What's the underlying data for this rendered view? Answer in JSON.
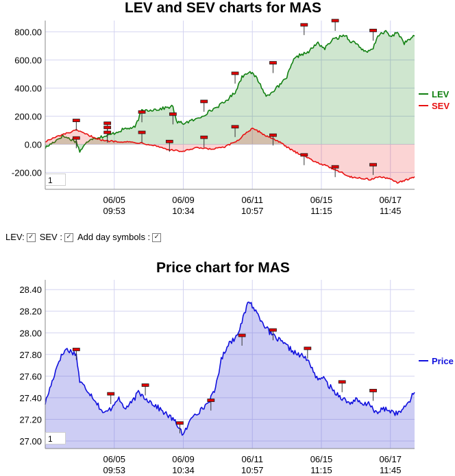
{
  "chart_data": [
    {
      "type": "area",
      "title": "LEV and SEV charts for MAS",
      "ylim": [
        -320,
        880
      ],
      "yticks": [
        "800.00",
        "600.00",
        "400.00",
        "200.00",
        "0.00",
        "-200.00"
      ],
      "ytick_values": [
        800,
        600,
        400,
        200,
        0,
        -200
      ],
      "xticks": [
        {
          "date": "06/05",
          "time": "09:53",
          "index": 20
        },
        {
          "date": "06/09",
          "time": "10:34",
          "index": 40
        },
        {
          "date": "06/11",
          "time": "10:57",
          "index": 60
        },
        {
          "date": "06/15",
          "time": "11:15",
          "index": 80
        },
        {
          "date": "06/17",
          "time": "11:45",
          "index": 100
        }
      ],
      "x_count": 107,
      "legend": {
        "position": "right"
      },
      "zoom_value": "1",
      "series": [
        {
          "name": "LEV",
          "color": "#118011",
          "fill": "rgba(17,128,17,0.20)",
          "points": [
            [
              0,
              -25
            ],
            [
              5,
              60
            ],
            [
              9,
              20
            ],
            [
              10,
              -50
            ],
            [
              13,
              40
            ],
            [
              18,
              60
            ],
            [
              20,
              80
            ],
            [
              23,
              110
            ],
            [
              26,
              120
            ],
            [
              28,
              240
            ],
            [
              33,
              250
            ],
            [
              37,
              270
            ],
            [
              38,
              160
            ],
            [
              40,
              150
            ],
            [
              44,
              180
            ],
            [
              48,
              240
            ],
            [
              52,
              300
            ],
            [
              55,
              370
            ],
            [
              57,
              480
            ],
            [
              59,
              520
            ],
            [
              61,
              480
            ],
            [
              62,
              440
            ],
            [
              64,
              340
            ],
            [
              66,
              380
            ],
            [
              68,
              420
            ],
            [
              70,
              480
            ],
            [
              72,
              600
            ],
            [
              74,
              640
            ],
            [
              76,
              650
            ],
            [
              78,
              700
            ],
            [
              79,
              720
            ],
            [
              81,
              680
            ],
            [
              83,
              740
            ],
            [
              85,
              760
            ],
            [
              87,
              780
            ],
            [
              88,
              740
            ],
            [
              90,
              720
            ],
            [
              93,
              650
            ],
            [
              95,
              680
            ],
            [
              96,
              750
            ],
            [
              97,
              790
            ],
            [
              99,
              800
            ],
            [
              100,
              760
            ],
            [
              102,
              800
            ],
            [
              104,
              720
            ],
            [
              107,
              770
            ]
          ],
          "symbols": [
            [
              9,
              165
            ],
            [
              18,
              145
            ],
            [
              18,
              115
            ],
            [
              28,
              225
            ],
            [
              37,
              210
            ],
            [
              46,
              300
            ],
            [
              55,
              500
            ],
            [
              66,
              575
            ],
            [
              75,
              845
            ],
            [
              84,
              875
            ],
            [
              95,
              805
            ]
          ]
        },
        {
          "name": "SEV",
          "color": "#e81010",
          "fill": "rgba(232,16,16,0.18)",
          "points": [
            [
              0,
              20
            ],
            [
              4,
              60
            ],
            [
              9,
              100
            ],
            [
              13,
              60
            ],
            [
              17,
              25
            ],
            [
              22,
              20
            ],
            [
              28,
              10
            ],
            [
              32,
              -10
            ],
            [
              36,
              -40
            ],
            [
              40,
              -50
            ],
            [
              44,
              -25
            ],
            [
              48,
              -35
            ],
            [
              52,
              -20
            ],
            [
              56,
              30
            ],
            [
              58,
              80
            ],
            [
              60,
              110
            ],
            [
              62,
              90
            ],
            [
              64,
              60
            ],
            [
              67,
              30
            ],
            [
              70,
              -20
            ],
            [
              72,
              -50
            ],
            [
              75,
              -80
            ],
            [
              77,
              -110
            ],
            [
              80,
              -140
            ],
            [
              83,
              -170
            ],
            [
              86,
              -200
            ],
            [
              88,
              -230
            ],
            [
              91,
              -240
            ],
            [
              94,
              -250
            ],
            [
              97,
              -230
            ],
            [
              100,
              -250
            ],
            [
              102,
              -270
            ],
            [
              104,
              -260
            ],
            [
              107,
              -230
            ]
          ],
          "symbols": [
            [
              9,
              40
            ],
            [
              18,
              80
            ],
            [
              28,
              80
            ],
            [
              36,
              15
            ],
            [
              46,
              45
            ],
            [
              55,
              120
            ],
            [
              66,
              60
            ],
            [
              75,
              -80
            ],
            [
              84,
              -165
            ],
            [
              95,
              -150
            ]
          ]
        }
      ]
    },
    {
      "type": "area",
      "title": "Price chart for MAS",
      "ylim": [
        26.93,
        28.49
      ],
      "yticks": [
        "28.40",
        "28.20",
        "28.00",
        "27.80",
        "27.60",
        "27.40",
        "27.20",
        "27.00"
      ],
      "ytick_values": [
        28.4,
        28.2,
        28.0,
        27.8,
        27.6,
        27.4,
        27.2,
        27.0
      ],
      "xticks": [
        {
          "date": "06/05",
          "time": "09:53",
          "index": 20
        },
        {
          "date": "06/09",
          "time": "10:34",
          "index": 40
        },
        {
          "date": "06/11",
          "time": "10:57",
          "index": 60
        },
        {
          "date": "06/15",
          "time": "11:15",
          "index": 80
        },
        {
          "date": "06/17",
          "time": "11:45",
          "index": 100
        }
      ],
      "x_count": 107,
      "legend": {
        "position": "right"
      },
      "zoom_value": "1",
      "series": [
        {
          "name": "Price",
          "color": "#1010dd",
          "fill": "rgba(90,90,220,0.30)",
          "points": [
            [
              0,
              27.35
            ],
            [
              2,
              27.55
            ],
            [
              4,
              27.75
            ],
            [
              6,
              27.85
            ],
            [
              8,
              27.82
            ],
            [
              9,
              27.8
            ],
            [
              10,
              27.55
            ],
            [
              12,
              27.48
            ],
            [
              14,
              27.4
            ],
            [
              15,
              27.35
            ],
            [
              17,
              27.25
            ],
            [
              19,
              27.3
            ],
            [
              21,
              27.4
            ],
            [
              23,
              27.3
            ],
            [
              25,
              27.35
            ],
            [
              27,
              27.45
            ],
            [
              29,
              27.4
            ],
            [
              31,
              27.35
            ],
            [
              33,
              27.3
            ],
            [
              35,
              27.25
            ],
            [
              37,
              27.2
            ],
            [
              39,
              27.12
            ],
            [
              40,
              27.05
            ],
            [
              41,
              27.12
            ],
            [
              43,
              27.25
            ],
            [
              45,
              27.28
            ],
            [
              47,
              27.35
            ],
            [
              49,
              27.45
            ],
            [
              51,
              27.75
            ],
            [
              53,
              27.9
            ],
            [
              55,
              27.95
            ],
            [
              57,
              28.1
            ],
            [
              58,
              28.2
            ],
            [
              59,
              28.3
            ],
            [
              61,
              28.2
            ],
            [
              63,
              28.1
            ],
            [
              65,
              28.0
            ],
            [
              67,
              27.95
            ],
            [
              69,
              27.9
            ],
            [
              71,
              27.85
            ],
            [
              73,
              27.8
            ],
            [
              75,
              27.78
            ],
            [
              77,
              27.7
            ],
            [
              79,
              27.55
            ],
            [
              80,
              27.6
            ],
            [
              82,
              27.52
            ],
            [
              84,
              27.45
            ],
            [
              86,
              27.4
            ],
            [
              88,
              27.35
            ],
            [
              90,
              27.38
            ],
            [
              92,
              27.33
            ],
            [
              94,
              27.35
            ],
            [
              96,
              27.25
            ],
            [
              98,
              27.3
            ],
            [
              100,
              27.28
            ],
            [
              102,
              27.25
            ],
            [
              104,
              27.3
            ],
            [
              106,
              27.4
            ],
            [
              107,
              27.45
            ]
          ],
          "symbols": [
            [
              9,
              27.84
            ],
            [
              19,
              27.43
            ],
            [
              29,
              27.51
            ],
            [
              39,
              27.16
            ],
            [
              48,
              27.37
            ],
            [
              57,
              27.97
            ],
            [
              66,
              28.02
            ],
            [
              76,
              27.85
            ],
            [
              86,
              27.54
            ],
            [
              95,
              27.46
            ]
          ]
        }
      ]
    }
  ],
  "controls": {
    "lev_label": "LEV:",
    "sev_label": "SEV :",
    "symbols_label": "Add day symbols :"
  }
}
